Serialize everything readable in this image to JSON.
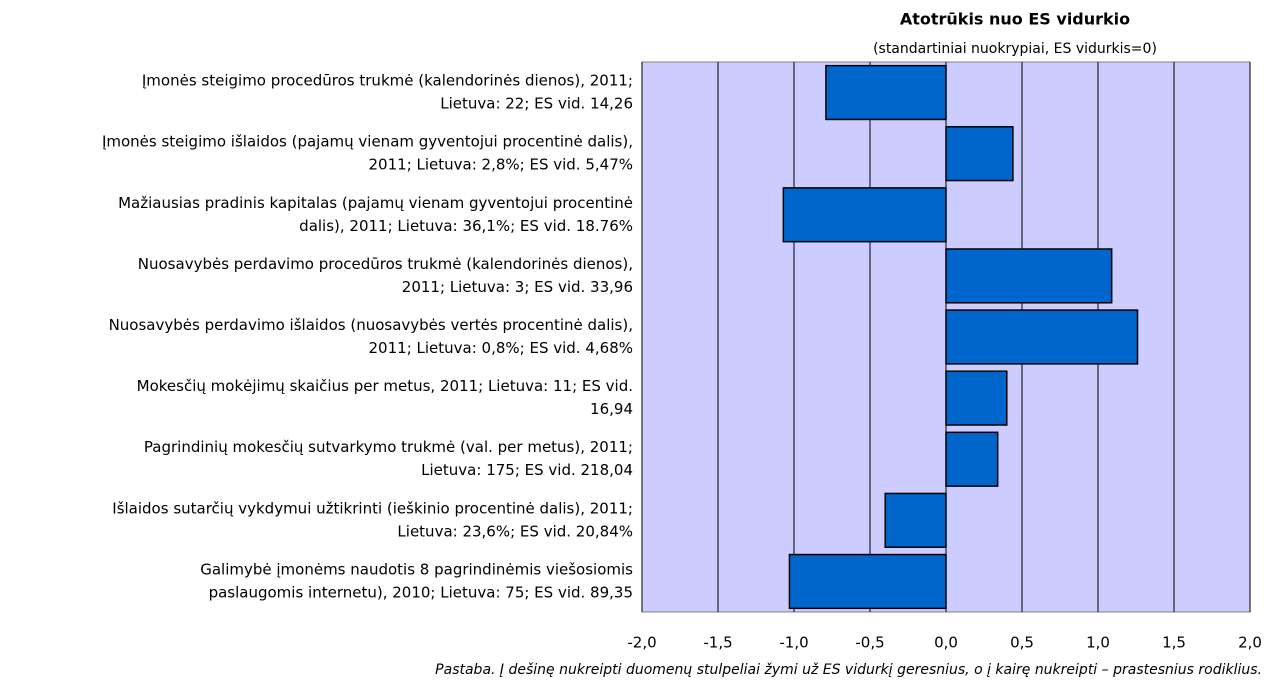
{
  "chart_data": {
    "type": "bar",
    "orientation": "horizontal",
    "title": "Atotrūkis nuo ES vidurkio",
    "subtitle": "(standartiniai nuokrypiai, ES vidurkis=0)",
    "note": "Pastaba. Į dešinę nukreipti duomenų stulpeliai žymi už ES vidurkį geresnius, o į kairę nukreipti – prastesnius rodiklius.",
    "categories": [
      [
        "Įmonės steigimo procedūros trukmė (kalendorinės dienos), 2011;",
        "Lietuva: 22; ES vid. 14,26"
      ],
      [
        "Įmonės steigimo išlaidos (pajamų vienam gyventojui procentinė dalis),",
        "2011; Lietuva: 2,8%; ES vid. 5,47%"
      ],
      [
        "Mažiausias pradinis kapitalas (pajamų vienam gyventojui procentinė",
        "dalis), 2011; Lietuva: 36,1%; ES vid. 18.76%"
      ],
      [
        "Nuosavybės perdavimo procedūros trukmė (kalendorinės dienos),",
        "2011; Lietuva: 3; ES vid. 33,96"
      ],
      [
        "Nuosavybės perdavimo išlaidos (nuosavybės vertės procentinė dalis),",
        "2011; Lietuva: 0,8%; ES vid. 4,68%"
      ],
      [
        "Mokesčių mokėjimų skaičius per metus, 2011; Lietuva: 11; ES vid.",
        "16,94"
      ],
      [
        "Pagrindinių mokesčių sutvarkymo trukmė (val. per metus), 2011;",
        "Lietuva: 175; ES vid. 218,04"
      ],
      [
        "Išlaidos sutarčių vykdymui užtikrinti (ieškinio procentinė dalis), 2011;",
        "Lietuva: 23,6%; ES vid. 20,84%"
      ],
      [
        "Galimybė įmonėms naudotis 8 pagrindinėmis viešosiomis",
        "paslaugomis internetu), 2010; Lietuva: 75; ES vid. 89,35"
      ]
    ],
    "values": [
      -0.79,
      0.44,
      -1.07,
      1.09,
      1.26,
      0.4,
      0.34,
      -0.4,
      -1.03
    ],
    "color": "#0066cc",
    "xlim": [
      -2,
      2
    ],
    "xticks": [
      {
        "value": -2,
        "label": "-2,0"
      },
      {
        "value": -1.5,
        "label": "-1,5"
      },
      {
        "value": -1,
        "label": "-1,0"
      },
      {
        "value": -0.5,
        "label": "-0,5"
      },
      {
        "value": 0,
        "label": "0,0"
      },
      {
        "value": 0.5,
        "label": "0,5"
      },
      {
        "value": 1,
        "label": "1,0"
      },
      {
        "value": 1.5,
        "label": "1,5"
      },
      {
        "value": 2,
        "label": "2,0"
      }
    ],
    "grid": true
  }
}
